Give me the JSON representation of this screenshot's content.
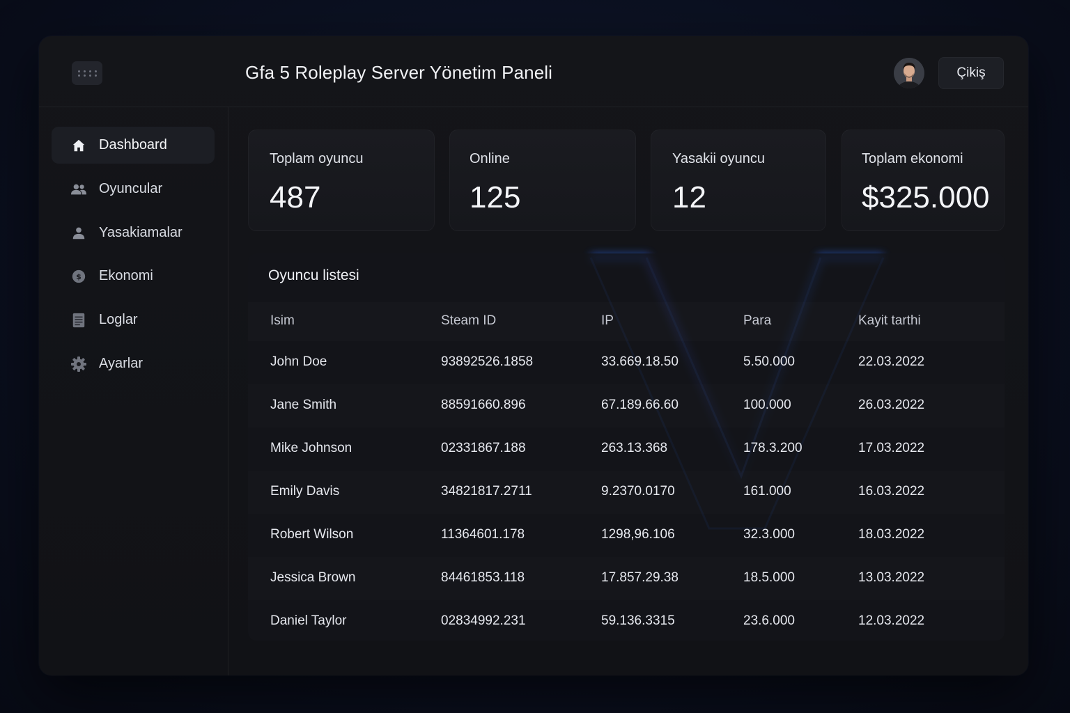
{
  "header": {
    "title": "Gfa 5 Roleplay Server Yönetim Paneli",
    "logout_label": "Çikiş"
  },
  "sidebar": {
    "items": [
      {
        "label": "Dashboard",
        "icon": "home-icon",
        "active": true
      },
      {
        "label": "Oyuncular",
        "icon": "users-icon"
      },
      {
        "label": "Yasakiamalar",
        "icon": "user-ban-icon"
      },
      {
        "label": "Ekonomi",
        "icon": "coin-icon"
      },
      {
        "label": "Loglar",
        "icon": "document-icon"
      },
      {
        "label": "Ayarlar",
        "icon": "gear-icon"
      }
    ]
  },
  "stats": [
    {
      "label": "Toplam oyuncu",
      "value": "487"
    },
    {
      "label": "Online",
      "value": "125"
    },
    {
      "label": "Yasakii oyuncu",
      "value": "12"
    },
    {
      "label": "Toplam ekonomi",
      "value": "$325.000"
    }
  ],
  "players": {
    "title": "Oyuncu listesi",
    "columns": [
      "Isim",
      "Steam ID",
      "IP",
      "Para",
      "Kayit tarthi"
    ],
    "rows": [
      [
        "John Doe",
        "93892526.1858",
        "33.669.18.50",
        "5.50.000",
        "22.03.2022"
      ],
      [
        "Jane Smith",
        "88591660.896",
        "67.189.66.60",
        "100.000",
        "26.03.2022"
      ],
      [
        "Mike Johnson",
        "02331867.188",
        "263.13.368",
        "178.3.200",
        "17.03.2022"
      ],
      [
        "Emily Davis",
        "34821817.2711",
        "9.2370.0170",
        "161.000",
        "16.03.2022"
      ],
      [
        "Robert Wilson",
        "11364601.178",
        "1298,96.106",
        "32.3.000",
        "18.03.2022"
      ],
      [
        "Jessica Brown",
        "84461853.118",
        "17.857.29.38",
        "18.5.000",
        "13.03.2022"
      ],
      [
        "Daniel Taylor",
        "02834992.231",
        "59.136.3315",
        "23.6.000",
        "12.03.2022"
      ]
    ]
  },
  "colors": {
    "accent_glow": "#2d6cff",
    "accent_glow_secondary": "#5a4bff",
    "background": "#0b1020",
    "panel": "#141519"
  }
}
